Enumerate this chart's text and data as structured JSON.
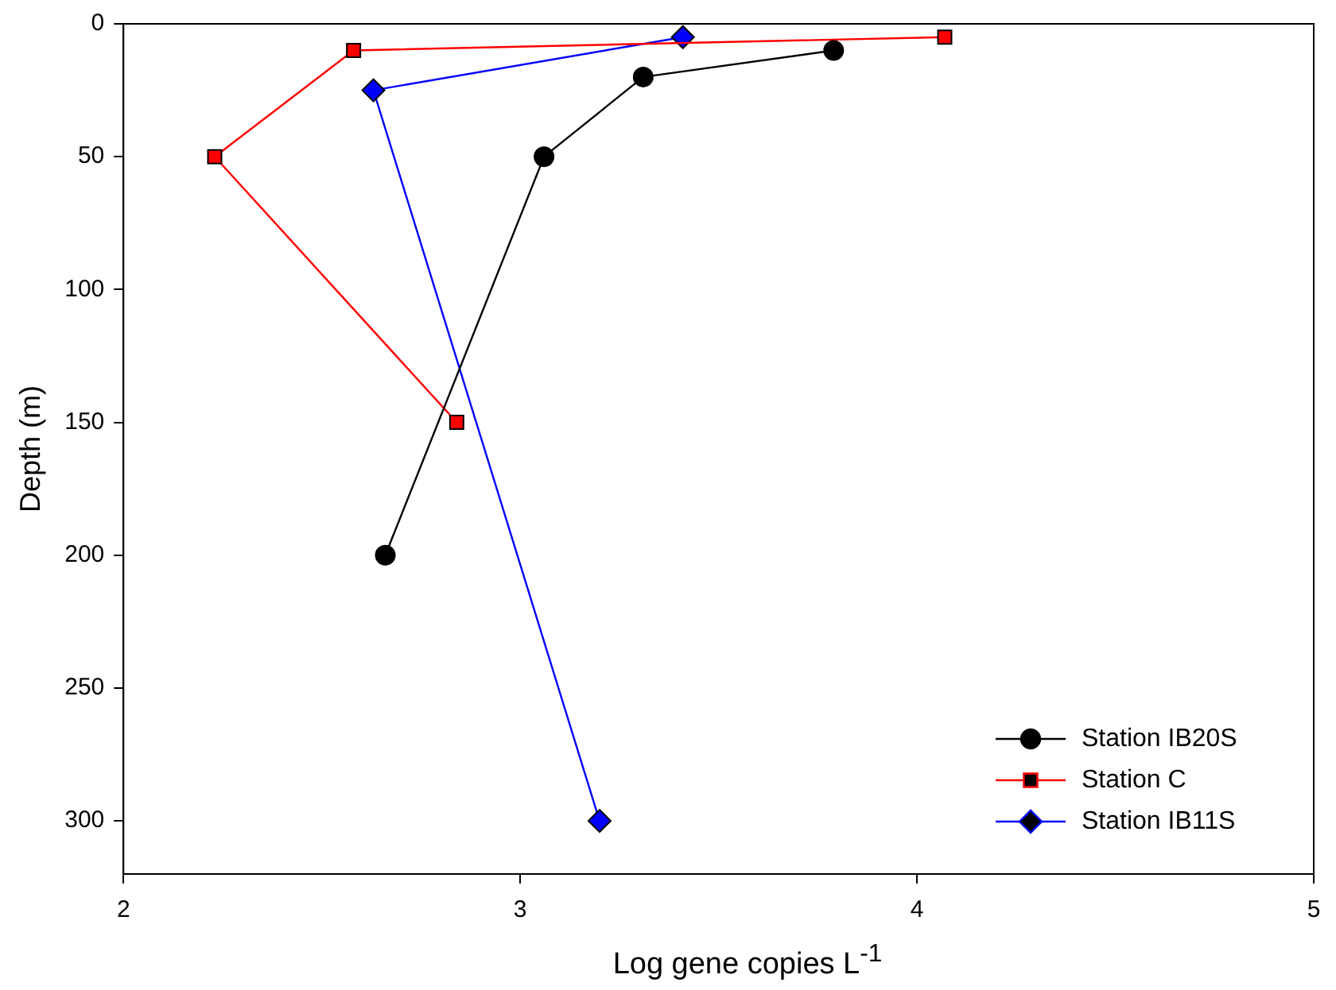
{
  "chart_data": {
    "type": "line",
    "xlabel": "Log gene copies L$^{-1}$",
    "ylabel": "Depth (m)",
    "xlim": [
      2,
      5
    ],
    "xticks": [
      2,
      3,
      4,
      5
    ],
    "ylim": [
      320,
      0
    ],
    "yticks": [
      0,
      50,
      100,
      150,
      200,
      250,
      300
    ],
    "grid": false,
    "legend": "bottom right",
    "line_style": "solid",
    "series": [
      {
        "name": "Station IB20S",
        "color": "#000000",
        "marker": "circle",
        "x": [
          3.79,
          3.31,
          3.06,
          2.66
        ],
        "values": [
          10,
          20,
          50,
          200
        ]
      },
      {
        "name": "Station C",
        "color": "#ff0000",
        "marker": "square",
        "x": [
          4.07,
          2.58,
          2.23,
          2.84
        ],
        "values": [
          5,
          10,
          50,
          150
        ]
      },
      {
        "name": "Station IB11S",
        "color": "#0000ff",
        "marker": "diamond",
        "x": [
          3.41,
          2.63,
          3.2
        ],
        "values": [
          5,
          25,
          300
        ]
      }
    ]
  }
}
